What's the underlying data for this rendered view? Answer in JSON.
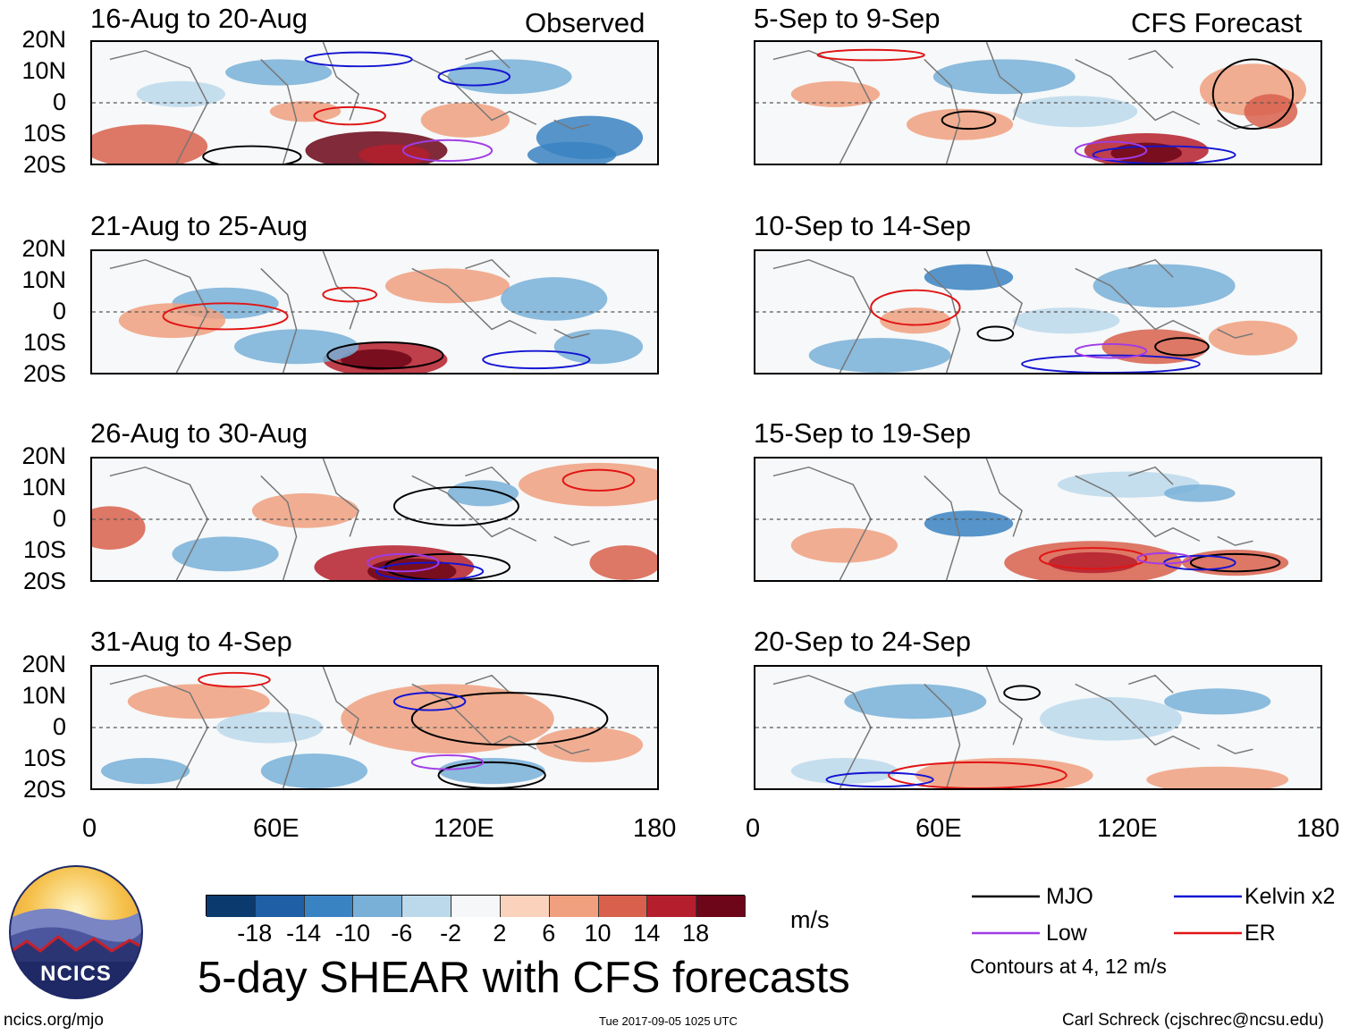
{
  "chart_data": {
    "type": "heatmap",
    "title": "5-day SHEAR with CFS forecasts",
    "variable": "SHEAR",
    "units": "m/s",
    "x_range": [
      0,
      180
    ],
    "y_range": [
      -20,
      20
    ],
    "x_ticks": [
      "0",
      "60E",
      "120E",
      "180"
    ],
    "y_ticks": [
      "20N",
      "10N",
      "0",
      "10S",
      "20S"
    ],
    "column_labels": {
      "left": "Observed",
      "right": "CFS Forecast"
    },
    "panels": [
      {
        "period": "16-Aug to 20-Aug",
        "column": "Observed"
      },
      {
        "period": "21-Aug to 25-Aug",
        "column": "Observed"
      },
      {
        "period": "26-Aug to 30-Aug",
        "column": "Observed"
      },
      {
        "period": "31-Aug to 4-Sep",
        "column": "Observed"
      },
      {
        "period": "5-Sep to 9-Sep",
        "column": "CFS Forecast"
      },
      {
        "period": "10-Sep to 14-Sep",
        "column": "CFS Forecast"
      },
      {
        "period": "15-Sep to 19-Sep",
        "column": "CFS Forecast"
      },
      {
        "period": "20-Sep to 24-Sep",
        "column": "CFS Forecast"
      }
    ],
    "colorbar": {
      "ticks": [
        "-18",
        "-14",
        "-10",
        "-6",
        "-2",
        "2",
        "6",
        "10",
        "14",
        "18"
      ],
      "colors": [
        "#0b3a6e",
        "#1f5fa5",
        "#3a83c2",
        "#78b0d8",
        "#bcd9ec",
        "#f5f7f8",
        "#fbd2bb",
        "#f0a07f",
        "#d8604c",
        "#b51f2d",
        "#6c0618"
      ]
    },
    "legend": [
      {
        "label": "MJO",
        "color": "#000000"
      },
      {
        "label": "Kelvin x2",
        "color": "#1414d2"
      },
      {
        "label": "Low",
        "color": "#a03ce6"
      },
      {
        "label": "ER",
        "color": "#e11414"
      }
    ],
    "contour_note": "Contours at 4, 12 m/s"
  },
  "branding": {
    "logo_text": "NCICS",
    "site": "ncics.org/mjo",
    "timestamp": "Tue 2017-09-05 1025 UTC",
    "author": "Carl Schreck (cjschrec@ncsu.edu)"
  }
}
